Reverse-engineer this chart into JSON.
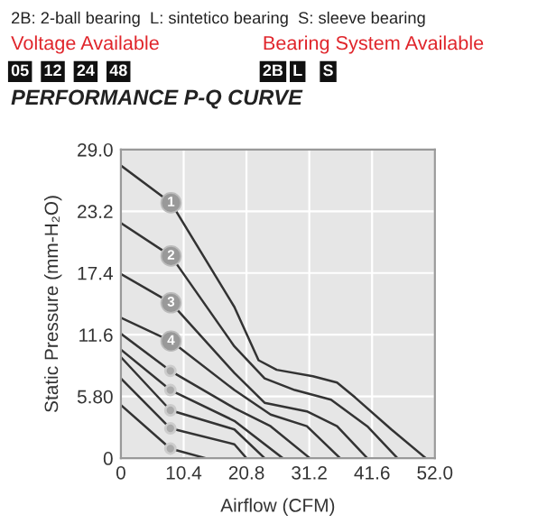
{
  "chart_data": {
    "type": "line",
    "title": "PERFORMANCE P-Q CURVE",
    "xlabel": "Airflow (CFM)",
    "ylabel": "Static Pressure (mm-H₂O)",
    "annotations": [
      "2B: 2-ball bearing  L: sintetico bearing  S: sleeve bearing",
      "Voltage Available",
      "Bearing System Available",
      "05",
      "12",
      "24",
      "48",
      "2B",
      "L",
      "S"
    ],
    "xlim": [
      0,
      52
    ],
    "ylim": [
      0,
      29
    ],
    "xticks": [
      0,
      10.4,
      20.8,
      31.2,
      41.6,
      {
        "value": 52,
        "label": "52.0"
      }
    ],
    "yticks": [
      0,
      {
        "value": 5.8,
        "label": "5.80"
      },
      11.6,
      17.4,
      23.2,
      {
        "value": 29,
        "label": "29.0"
      }
    ],
    "grid": true,
    "legend": false,
    "marker": "none",
    "line_style": "solid",
    "series": [
      {
        "name": "1",
        "color": "#333333",
        "x": [
          0,
          8.3,
          18.8,
          22.8,
          25.8,
          31.8,
          35.8,
          38.8,
          44.8,
          50.5
        ],
        "values": [
          27.5,
          24.0,
          14.2,
          9.2,
          8.3,
          7.7,
          7.1,
          5.7,
          2.7,
          0
        ]
      },
      {
        "name": "2",
        "color": "#333333",
        "x": [
          0,
          8.3,
          18.8,
          23.8,
          28.8,
          34.8,
          40.8,
          45.8
        ],
        "values": [
          22.1,
          19.0,
          10.5,
          7.5,
          6.4,
          5.5,
          3.0,
          0
        ]
      },
      {
        "name": "3",
        "color": "#333333",
        "x": [
          0,
          8.3,
          18.8,
          23.8,
          30.8,
          35.8,
          40.8
        ],
        "values": [
          17.3,
          14.6,
          8.0,
          5.2,
          4.4,
          3.0,
          0
        ]
      },
      {
        "name": "4",
        "color": "#333333",
        "x": [
          0,
          8.3,
          18.8,
          24.8,
          30.8,
          36.3
        ],
        "values": [
          13.2,
          11.0,
          6.4,
          4.1,
          3.0,
          0
        ]
      },
      {
        "color": "#333333",
        "x": [
          0,
          8.2,
          18.8,
          24.8,
          31.3
        ],
        "values": [
          11.7,
          8.2,
          4.7,
          3.0,
          0
        ]
      },
      {
        "color": "#333333",
        "x": [
          0,
          8.2,
          18.8,
          26.8
        ],
        "values": [
          10.2,
          6.4,
          3.5,
          0
        ]
      },
      {
        "color": "#333333",
        "x": [
          0,
          8.2,
          18.8,
          23.8
        ],
        "values": [
          9.5,
          4.5,
          2.7,
          0
        ]
      },
      {
        "color": "#333333",
        "x": [
          0,
          8.2,
          18.8,
          20.8
        ],
        "values": [
          7.5,
          2.8,
          1.3,
          0
        ]
      },
      {
        "color": "#333333",
        "x": [
          0,
          8.2,
          14
        ],
        "values": [
          5.0,
          0.9,
          0
        ]
      }
    ]
  }
}
